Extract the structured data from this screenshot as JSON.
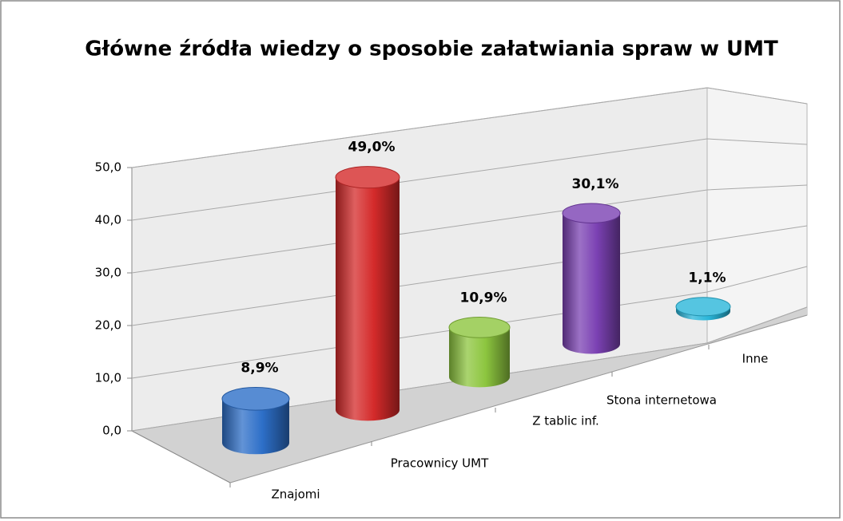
{
  "chart_data": {
    "type": "bar3d",
    "title": "Główne źródła wiedzy o sposobie załatwiania spraw w UMT",
    "categories": [
      "Znajomi",
      "Pracownicy UMT",
      "Z tablic inf.",
      "Stona internetowa",
      "Inne"
    ],
    "values": [
      8.9,
      49.0,
      10.9,
      30.1,
      1.1
    ],
    "value_labels": [
      "8,9%",
      "49,0%",
      "10,9%",
      "30,1%",
      "1,1%"
    ],
    "colors": [
      "#2d6fc8",
      "#d42a2a",
      "#8dc63f",
      "#7b41b3",
      "#2ab6da"
    ],
    "ylim": [
      0,
      50
    ],
    "yticks": [
      {
        "value": 0,
        "label": "0,0"
      },
      {
        "value": 10,
        "label": "10,0"
      },
      {
        "value": 20,
        "label": "20,0"
      },
      {
        "value": 30,
        "label": "30,0"
      },
      {
        "value": 40,
        "label": "40,0"
      },
      {
        "value": 50,
        "label": "50,0"
      }
    ],
    "grid": true
  }
}
